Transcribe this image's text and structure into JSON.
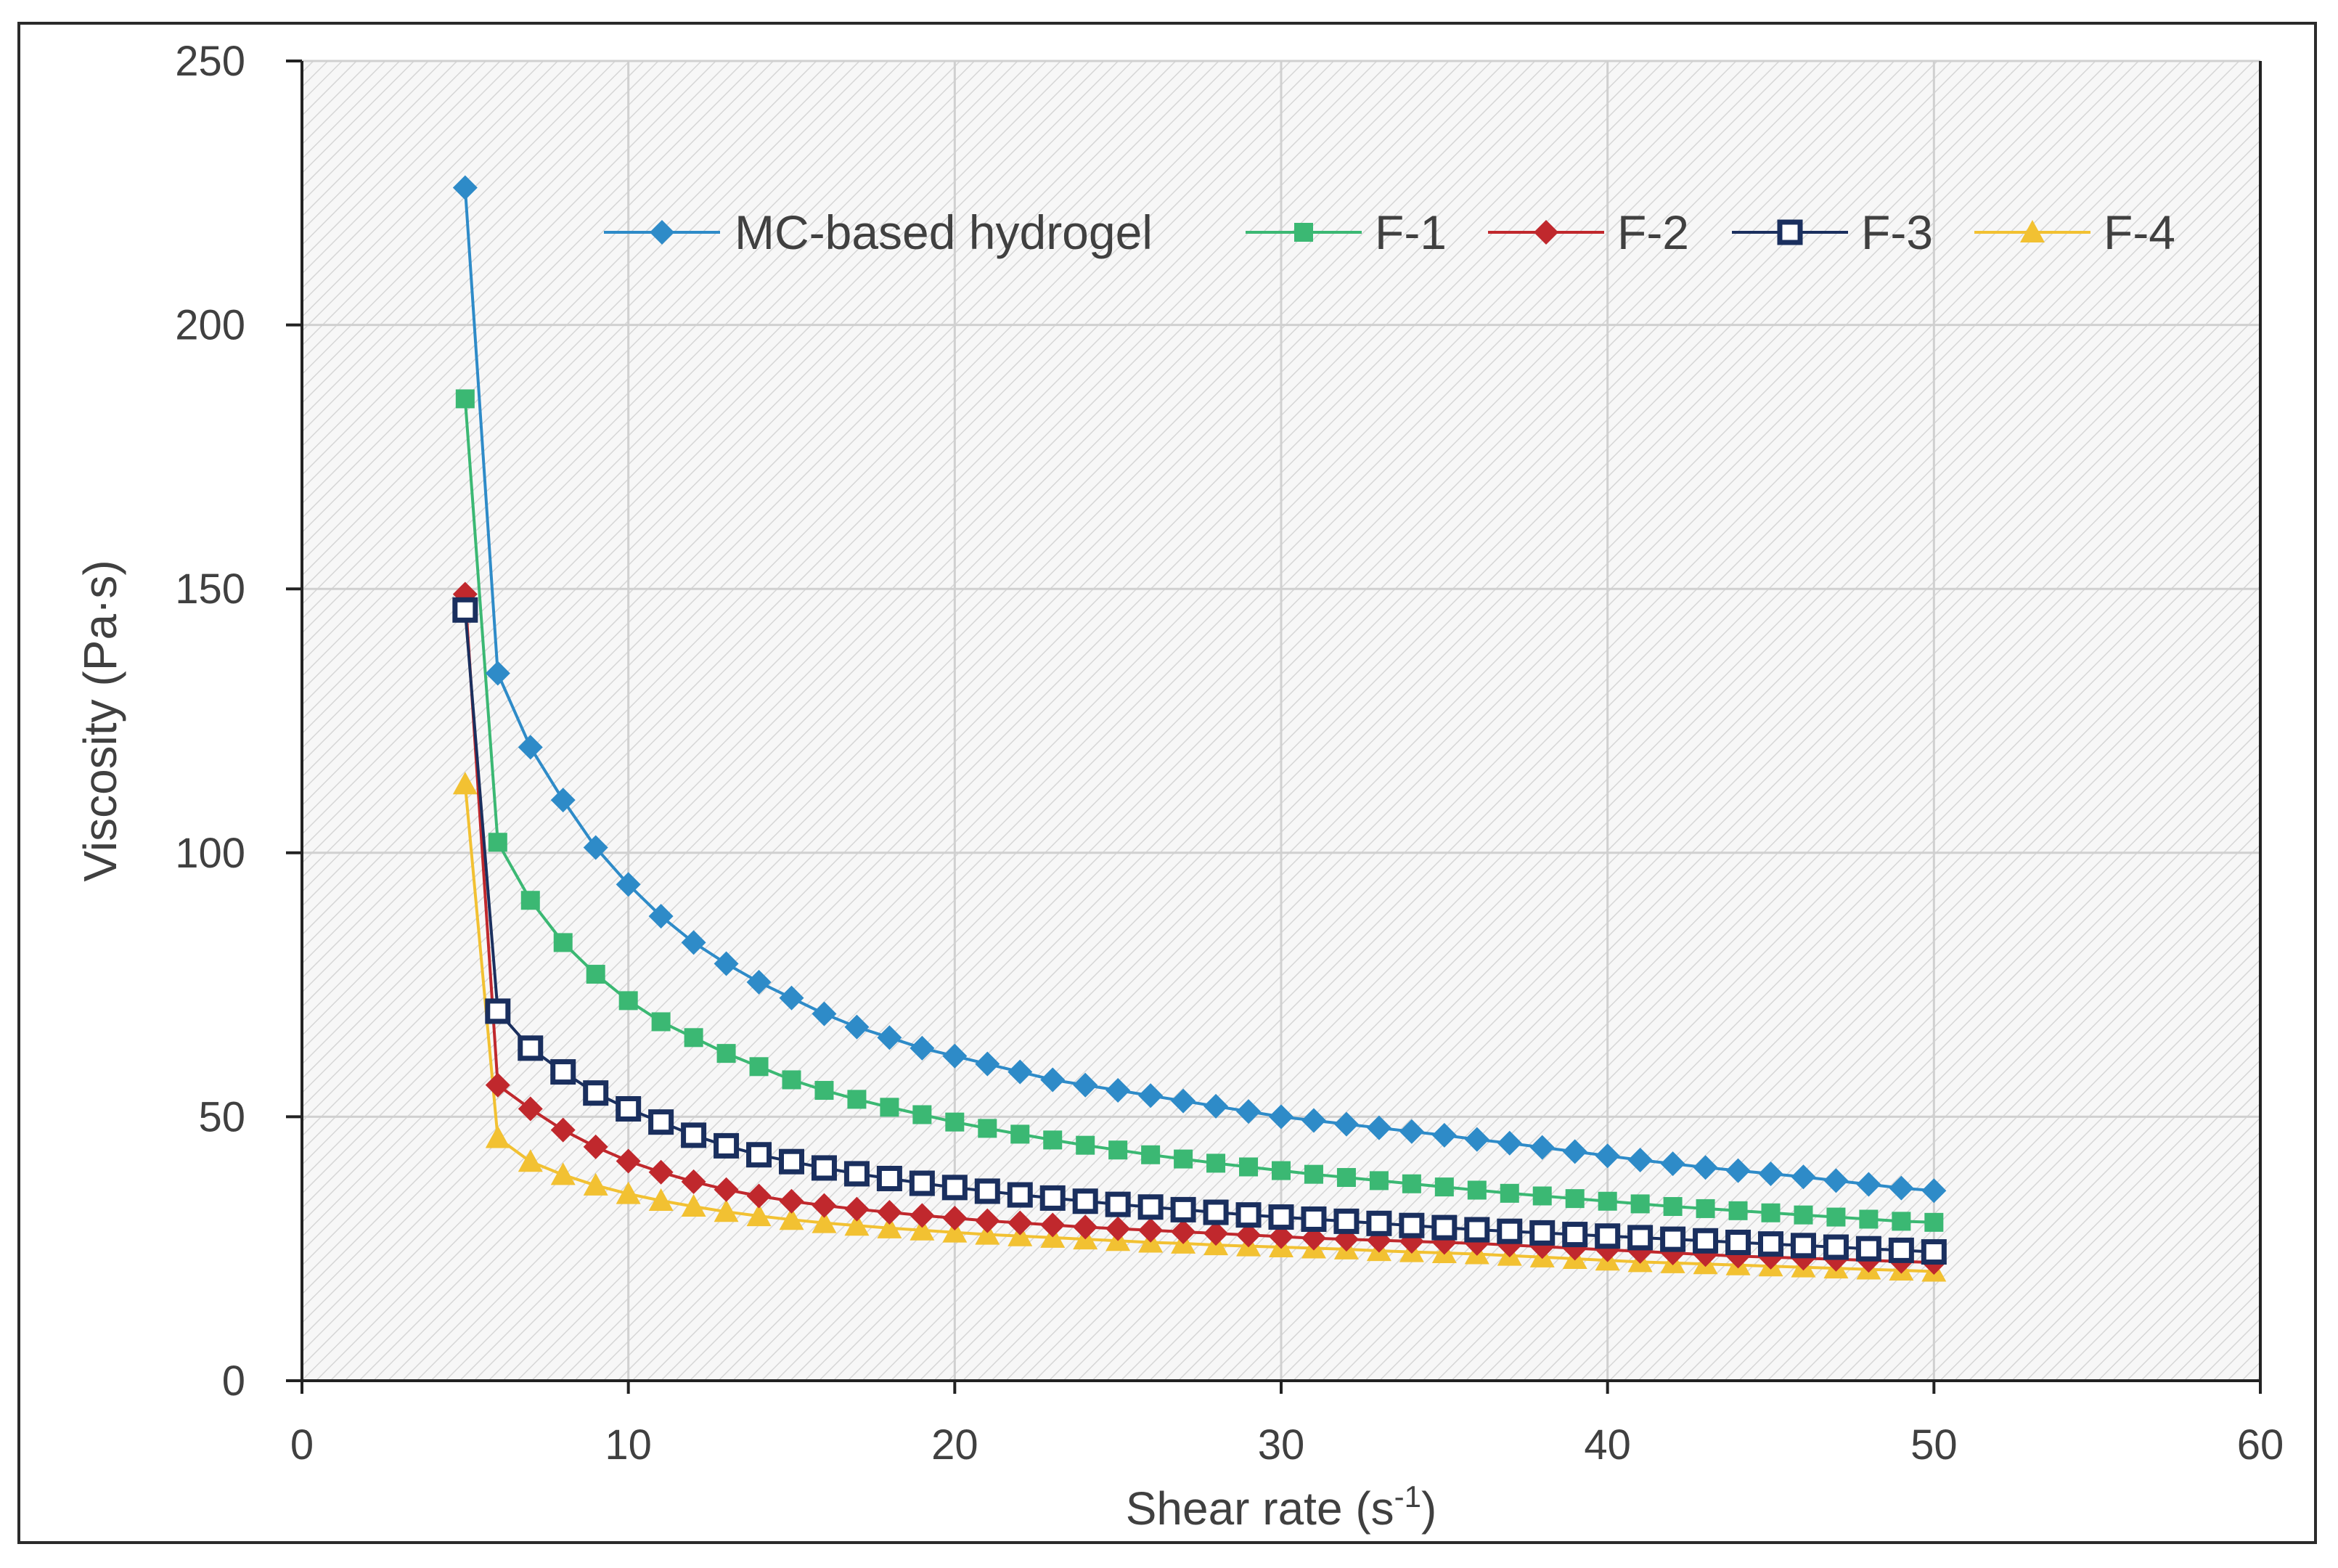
{
  "chart_data": {
    "type": "line",
    "title": "",
    "xlabel": "Shear rate (s",
    "xlabel_sup": "-1",
    "xlabel_end": ")",
    "ylabel": "Viscosity (Pa·s)",
    "xlim": [
      0,
      60
    ],
    "ylim": [
      0,
      250
    ],
    "xticks": [
      0,
      10,
      20,
      30,
      40,
      50,
      60
    ],
    "yticks": [
      0,
      50,
      100,
      150,
      200,
      250
    ],
    "grid": true,
    "legend_position": "top-right",
    "x": [
      5,
      6,
      7,
      8,
      9,
      10,
      11,
      12,
      13,
      14,
      15,
      16,
      17,
      18,
      19,
      20,
      21,
      22,
      23,
      24,
      25,
      26,
      27,
      28,
      29,
      30,
      31,
      32,
      33,
      34,
      35,
      36,
      37,
      38,
      39,
      40,
      41,
      42,
      43,
      44,
      45,
      46,
      47,
      48,
      49,
      50
    ],
    "series": [
      {
        "name": "MC-based hydrogel",
        "color": "#2e8bc8",
        "marker": "diamond",
        "values": [
          226,
          134,
          120,
          110,
          101,
          94,
          88,
          83,
          79,
          75.5,
          72.5,
          69.5,
          67,
          65,
          63,
          61.5,
          60,
          58.5,
          57,
          56,
          55,
          54,
          53,
          52,
          51,
          50,
          49.3,
          48.6,
          47.9,
          47.2,
          46.5,
          45.7,
          45,
          44.2,
          43.4,
          42.6,
          41.8,
          41.1,
          40.4,
          39.8,
          39.2,
          38.6,
          37.9,
          37.2,
          36.5,
          36
        ]
      },
      {
        "name": "F-1",
        "color": "#3bb873",
        "marker": "square",
        "values": [
          186,
          102,
          91,
          83,
          77,
          72,
          68,
          65,
          62,
          59.5,
          57,
          55,
          53.3,
          51.8,
          50.4,
          49,
          47.8,
          46.7,
          45.6,
          44.6,
          43.7,
          42.8,
          42,
          41.2,
          40.5,
          39.8,
          39.1,
          38.5,
          37.9,
          37.3,
          36.7,
          36.1,
          35.5,
          35,
          34.5,
          34,
          33.5,
          33,
          32.6,
          32.2,
          31.8,
          31.4,
          31,
          30.6,
          30.2,
          30
        ]
      },
      {
        "name": "F-2",
        "color": "#c0282d",
        "marker": "diamond",
        "values": [
          149,
          56,
          51.5,
          47.5,
          44.3,
          41.6,
          39.5,
          37.7,
          36.2,
          35,
          34,
          33.2,
          32.5,
          31.9,
          31.3,
          30.8,
          30.3,
          29.9,
          29.5,
          29.1,
          28.8,
          28.5,
          28.2,
          27.9,
          27.6,
          27.3,
          27,
          26.8,
          26.6,
          26.4,
          26.2,
          26,
          25.7,
          25.4,
          25.1,
          24.8,
          24.5,
          24.2,
          23.9,
          23.6,
          23.4,
          23.2,
          23,
          22.8,
          22.6,
          22.4
        ]
      },
      {
        "name": "F-3",
        "color": "#1a2f5e",
        "marker": "open-square",
        "values": [
          146,
          70,
          63,
          58.5,
          54.5,
          51.5,
          49,
          46.5,
          44.5,
          42.8,
          41.5,
          40.3,
          39.2,
          38.3,
          37.4,
          36.6,
          35.9,
          35.2,
          34.6,
          34,
          33.4,
          32.9,
          32.4,
          31.9,
          31.4,
          31,
          30.6,
          30.2,
          29.8,
          29.4,
          29,
          28.6,
          28.3,
          28,
          27.7,
          27.4,
          27.1,
          26.8,
          26.5,
          26.2,
          25.9,
          25.6,
          25.3,
          25,
          24.7,
          24.4
        ]
      },
      {
        "name": "F-4",
        "color": "#f2c132",
        "marker": "triangle",
        "values": [
          113,
          46,
          41.5,
          39,
          37,
          35.4,
          34.1,
          33,
          32,
          31.2,
          30.5,
          29.9,
          29.4,
          28.9,
          28.5,
          28.1,
          27.7,
          27.4,
          27.1,
          26.8,
          26.5,
          26.2,
          26,
          25.7,
          25.5,
          25.3,
          25.1,
          24.9,
          24.6,
          24.4,
          24.2,
          24,
          23.7,
          23.4,
          23.1,
          22.8,
          22.5,
          22.3,
          22.1,
          21.9,
          21.7,
          21.5,
          21.3,
          21.1,
          20.9,
          20.7
        ]
      }
    ]
  }
}
